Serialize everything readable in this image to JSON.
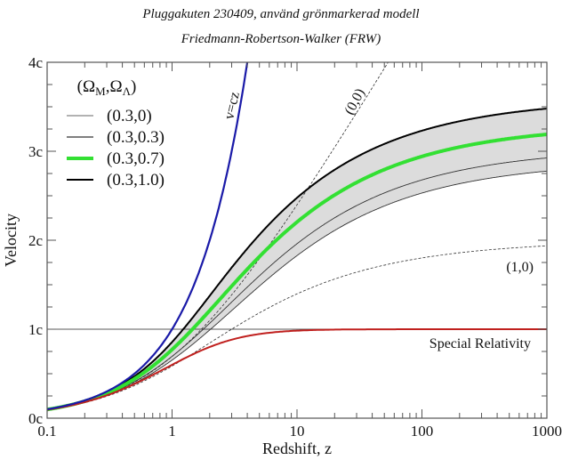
{
  "chart_data": {
    "type": "line",
    "title": "Pluggakuten 230409, använd grönmarkerad modell",
    "subtitle": "Friedmann-Robertson-Walker (FRW)",
    "xlabel": "Redshift, z",
    "ylabel": "Velocity",
    "xscale": "log",
    "xlim": [
      0.1,
      1000
    ],
    "ylim": [
      0,
      4
    ],
    "xticks": [
      "0.1",
      "1",
      "10",
      "100",
      "1000"
    ],
    "yticks": [
      "0c",
      "1c",
      "2c",
      "3c",
      "4c"
    ],
    "legend_title": "(Ω_M,Ω_Λ)",
    "legend_position": "top-left",
    "series": [
      {
        "name": "(0.3,0)",
        "omega_m": 0.3,
        "omega_l": 0.0,
        "color": "#999999",
        "style": "thin"
      },
      {
        "name": "(0.3,0.3)",
        "omega_m": 0.3,
        "omega_l": 0.3,
        "color": "#333333",
        "style": "thin"
      },
      {
        "name": "(0.3,0.7)",
        "omega_m": 0.3,
        "omega_l": 0.7,
        "color": "#33e033",
        "style": "thick"
      },
      {
        "name": "(0.3,1.0)",
        "omega_m": 0.3,
        "omega_l": 1.0,
        "color": "#000000",
        "style": "medium"
      },
      {
        "name": "(0,0)",
        "omega_m": 0.0,
        "omega_l": 0.0,
        "color": "#333333",
        "style": "dashed"
      },
      {
        "name": "(1,0)",
        "omega_m": 1.0,
        "omega_l": 0.0,
        "color": "#333333",
        "style": "dashed"
      },
      {
        "name": "v=cz",
        "color": "#1a1aa8",
        "style": "medium"
      },
      {
        "name": "Special Relativity",
        "color": "#c0201e",
        "style": "medium"
      }
    ],
    "shaded_band": {
      "between": [
        "(0.3,0)",
        "(0.3,1.0)"
      ],
      "color": "#dcdcdc"
    },
    "reference_line": {
      "y": 1,
      "label": "1c"
    },
    "annotations": [
      "v=cz",
      "(0,0)",
      "(1,0)",
      "Special Relativity"
    ],
    "sample_values": {
      "(0.3,0.7)": {
        "z": [
          1,
          10,
          100,
          1000
        ],
        "v": [
          0.77,
          2.2,
          2.9,
          3.2
        ]
      },
      "(0,0)": {
        "z": [
          1,
          10
        ],
        "v": [
          0.69,
          2.4
        ]
      },
      "(1,0)": {
        "z": [
          10,
          1000
        ],
        "v": [
          1.4,
          1.94
        ]
      },
      "Special Relativity": {
        "z": [
          1,
          10,
          1000
        ],
        "v": [
          0.6,
          0.98,
          1.0
        ]
      }
    }
  }
}
